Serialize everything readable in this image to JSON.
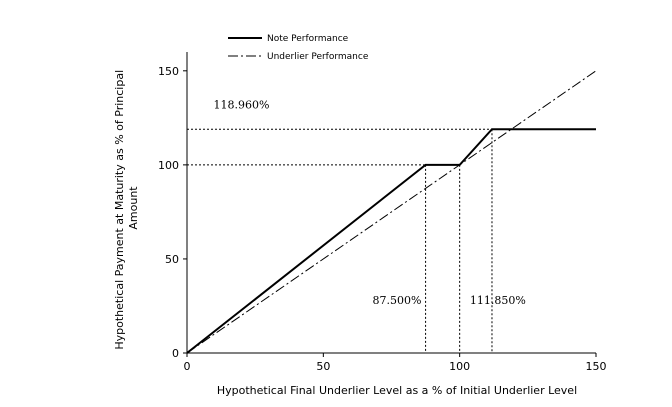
{
  "chart_data": {
    "type": "line",
    "xlabel": "Hypothetical Final Underlier Level as a % of Initial Underlier Level",
    "ylabel_lines": [
      "Hypothetical Payment at Maturity as % of Principal",
      "Amount"
    ],
    "xlim": [
      0,
      150
    ],
    "ylim": [
      0,
      160
    ],
    "xticks": [
      0,
      50,
      100,
      150
    ],
    "yticks": [
      0,
      50,
      100,
      150
    ],
    "grid": false,
    "legend_position": "top-left",
    "series": [
      {
        "name": "Note Performance",
        "style": "solid",
        "color": "#000000",
        "x": [
          0,
          87.5,
          100,
          111.85,
          150
        ],
        "y": [
          0,
          100,
          100,
          118.96,
          118.96
        ]
      },
      {
        "name": "Underlier Performance",
        "style": "dash-dot",
        "color": "#000000",
        "x": [
          0,
          150
        ],
        "y": [
          0,
          150
        ]
      }
    ],
    "reference_lines": {
      "horizontal": [
        {
          "y": 118.96,
          "x_to": 111.85
        },
        {
          "y": 100,
          "x_to": 87.5
        }
      ],
      "vertical": [
        {
          "x": 87.5,
          "y_to": 100
        },
        {
          "x": 100,
          "y_to": 100
        },
        {
          "x": 111.85,
          "y_to": 118.96
        }
      ]
    },
    "annotations": [
      {
        "text": "118.960%",
        "x": 20,
        "y": 130
      },
      {
        "text": "87.500%",
        "x": 77,
        "y": 26
      },
      {
        "text": "111.850%",
        "x": 114,
        "y": 26
      }
    ]
  }
}
